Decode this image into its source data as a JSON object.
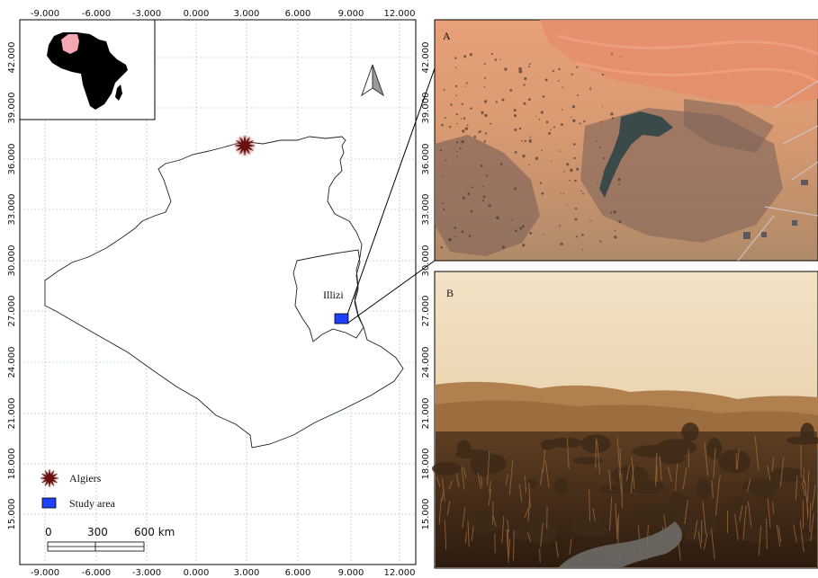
{
  "main_map": {
    "x_ticks": [
      "-9.000",
      "-6.000",
      "-3.000",
      "0.000",
      "3.000",
      "6.000",
      "9.000",
      "12.000"
    ],
    "y_ticks": [
      "42.000",
      "39.000",
      "36.000",
      "33.000",
      "30.000",
      "27.000",
      "24.000",
      "21.000",
      "18.000",
      "15.000"
    ],
    "region_label": "Illizi",
    "north_arrow": "north-arrow-icon",
    "algiers_marker_color": "#8b1a1a",
    "study_area_color": "#1f3fff"
  },
  "legend": {
    "items": [
      {
        "label": "Algiers",
        "icon": "star-burst-icon"
      },
      {
        "label": "Study area",
        "icon": "blue-square-icon"
      }
    ]
  },
  "scale_bar": {
    "labels": [
      "0",
      "300",
      "600 km"
    ]
  },
  "panels": {
    "a_label": "A",
    "b_label": "B"
  }
}
